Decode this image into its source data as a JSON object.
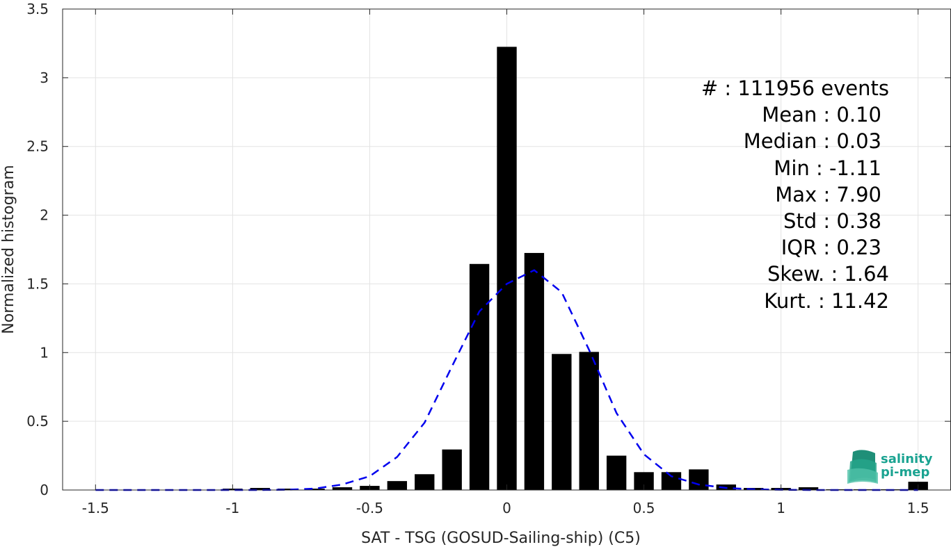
{
  "chart_data": {
    "type": "bar",
    "xlabel": "SAT - TSG (GOSUD-Sailing-ship) (C5)",
    "ylabel": "Normalized histogram",
    "xlim": [
      -1.62,
      1.62
    ],
    "ylim": [
      0,
      3.5
    ],
    "xticks": [
      "-1.5",
      "-1",
      "-0.5",
      "0",
      "0.5",
      "1",
      "1.5"
    ],
    "xtick_values": [
      -1.5,
      -1,
      -0.5,
      0,
      0.5,
      1,
      1.5
    ],
    "yticks": [
      "0",
      "0.5",
      "1",
      "1.5",
      "2",
      "2.5",
      "3",
      "3.5"
    ],
    "ytick_values": [
      0,
      0.5,
      1,
      1.5,
      2,
      2.5,
      3,
      3.5
    ],
    "grid": true,
    "bar_color": "#000000",
    "bars": {
      "x": [
        -1.5,
        -1.4,
        -1.3,
        -1.2,
        -1.1,
        -1.0,
        -0.9,
        -0.8,
        -0.7,
        -0.6,
        -0.5,
        -0.4,
        -0.3,
        -0.2,
        -0.1,
        0.0,
        0.1,
        0.2,
        0.3,
        0.4,
        0.5,
        0.6,
        0.7,
        0.8,
        0.9,
        1.0,
        1.1,
        1.2,
        1.3,
        1.4,
        1.5
      ],
      "values": [
        0,
        0,
        0,
        0,
        0,
        0.01,
        0.015,
        0.01,
        0.01,
        0.02,
        0.03,
        0.065,
        0.115,
        0.295,
        1.645,
        3.225,
        1.725,
        0.99,
        1.005,
        0.25,
        0.13,
        0.13,
        0.15,
        0.04,
        0.015,
        0.015,
        0.02,
        0.005,
        0.005,
        0.005,
        0.06
      ]
    },
    "fit_curve": {
      "style": "dashed",
      "color": "#0000ee",
      "x": [
        -1.5,
        -1.4,
        -1.3,
        -1.2,
        -1.1,
        -1.0,
        -0.9,
        -0.8,
        -0.7,
        -0.6,
        -0.5,
        -0.4,
        -0.3,
        -0.2,
        -0.1,
        0.0,
        0.1,
        0.2,
        0.3,
        0.4,
        0.5,
        0.6,
        0.7,
        0.8,
        0.9,
        1.0,
        1.1,
        1.2,
        1.3,
        1.4,
        1.5
      ],
      "values": [
        0,
        0,
        0,
        0,
        0,
        0,
        0,
        0.002,
        0.01,
        0.04,
        0.1,
        0.24,
        0.49,
        0.9,
        1.3,
        1.5,
        1.6,
        1.44,
        1.02,
        0.56,
        0.26,
        0.1,
        0.04,
        0.015,
        0.005,
        0.002,
        0,
        0,
        0,
        0,
        0
      ]
    }
  },
  "stats": {
    "count_line": "#  : 111956 events",
    "mean_line": "Mean : 0.10",
    "median_line": "Median : 0.03",
    "min_line": "Min : -1.11",
    "max_line": "Max : 7.90",
    "std_line": "Std : 0.38",
    "iqr_line": "IQR : 0.23",
    "skew_line": "Skew. : 1.64",
    "kurt_line": "Kurt. : 11.42"
  },
  "logo": {
    "line1": "salinity",
    "line2": "pi-mep",
    "color": "#1aa391"
  }
}
